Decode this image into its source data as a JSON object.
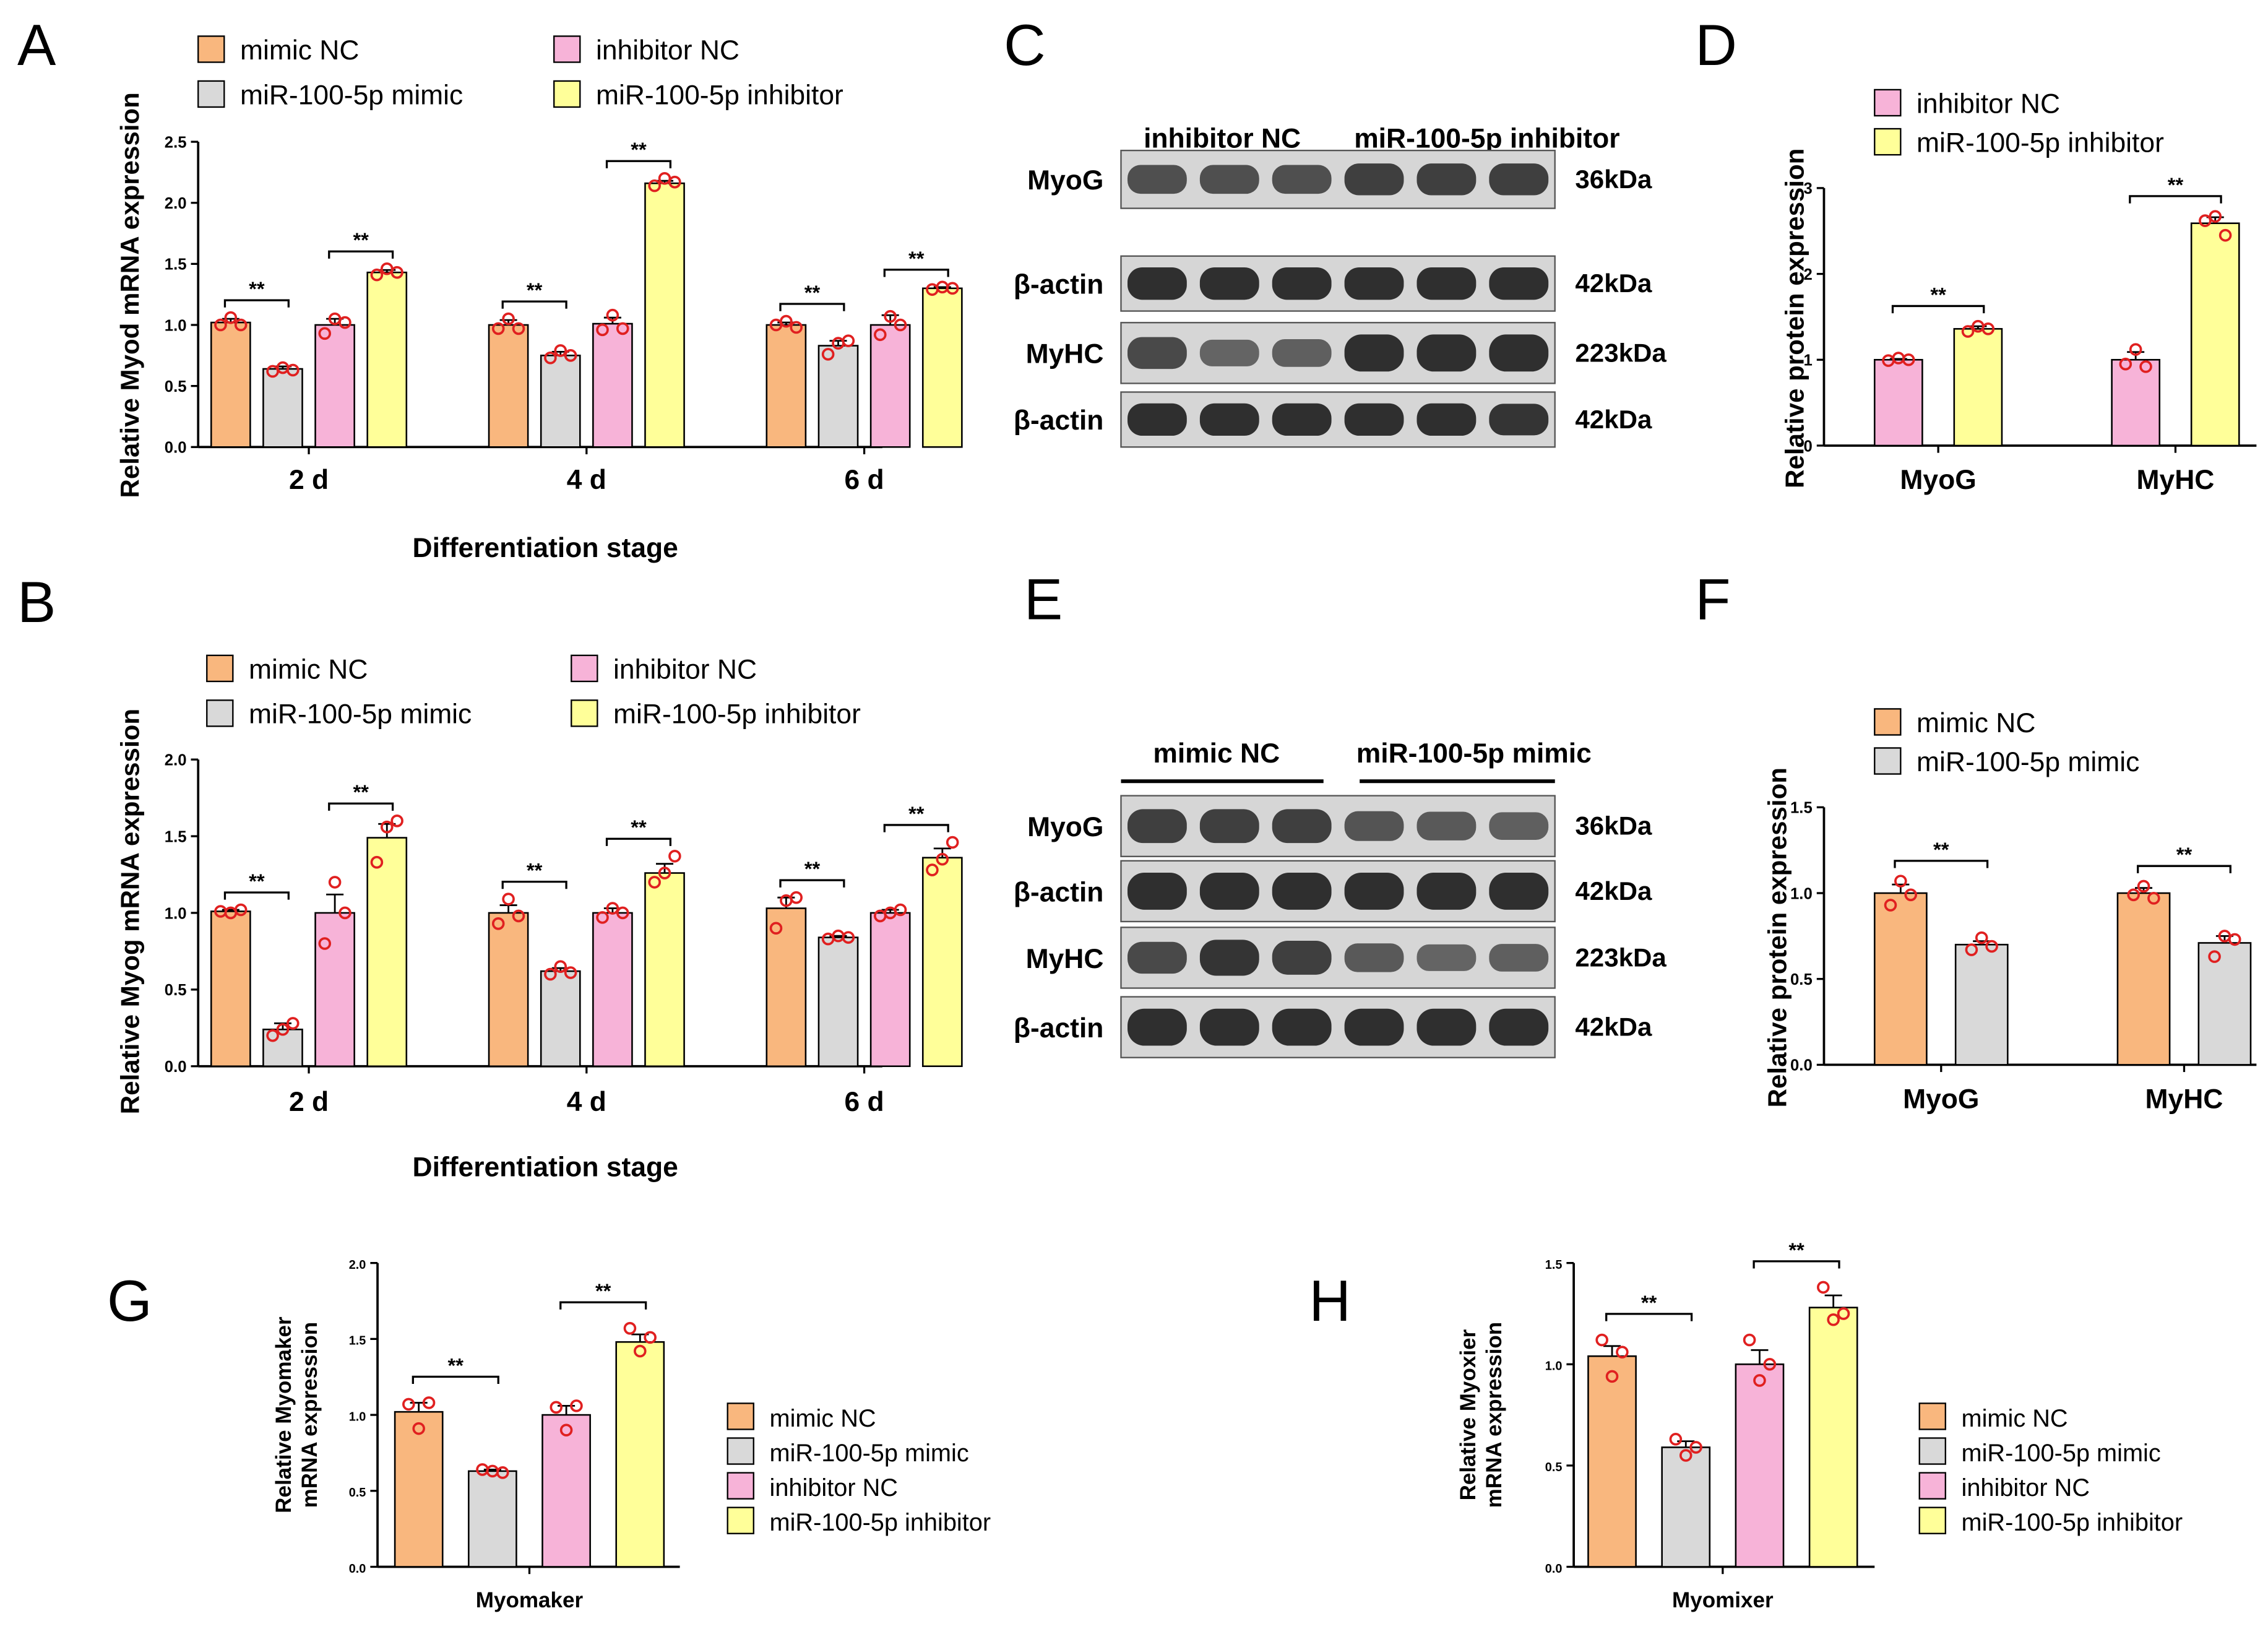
{
  "colors": {
    "mimic_nc": "#f9b77e",
    "mimic": "#d9d9d9",
    "inhibitor_nc": "#f7b3d8",
    "inhibitor": "#ffff99",
    "point": "#e02020",
    "blot_bg": "#d6d6d6",
    "blot_band": "#262626"
  },
  "panel_labels": {
    "A": "A",
    "B": "B",
    "C": "C",
    "D": "D",
    "E": "E",
    "F": "F",
    "G": "G",
    "H": "H"
  },
  "chart_data": [
    {
      "id": "A",
      "type": "bar",
      "ylabel": "Relative Myod mRNA expression",
      "xlabel": "Differentiation stage",
      "ylim": [
        0,
        2.5
      ],
      "yticks": [
        "0.0",
        "0.5",
        "1.0",
        "1.5",
        "2.0",
        "2.5"
      ],
      "categories": [
        "2 d",
        "4 d",
        "6 d"
      ],
      "legend": [
        "mimic NC",
        "miR-100-5p mimic",
        "inhibitor NC",
        "miR-100-5p inhibitor"
      ],
      "series": [
        {
          "name": "mimic NC",
          "values": [
            1.02,
            1.0,
            1.0
          ],
          "err": [
            0.03,
            0.04,
            0.02
          ],
          "points": [
            [
              1.0,
              1.06,
              1.0
            ],
            [
              0.97,
              1.05,
              0.97
            ],
            [
              1.0,
              1.03,
              0.98
            ]
          ]
        },
        {
          "name": "miR-100-5p mimic",
          "values": [
            0.64,
            0.75,
            0.83
          ],
          "err": [
            0.02,
            0.03,
            0.04
          ],
          "points": [
            [
              0.62,
              0.65,
              0.63
            ],
            [
              0.73,
              0.79,
              0.75
            ],
            [
              0.76,
              0.85,
              0.87
            ]
          ]
        },
        {
          "name": "inhibitor NC",
          "values": [
            1.0,
            1.01,
            1.0
          ],
          "err": [
            0.05,
            0.05,
            0.08
          ],
          "points": [
            [
              0.93,
              1.05,
              1.02
            ],
            [
              0.96,
              1.08,
              0.97
            ],
            [
              0.92,
              1.07,
              1.0
            ]
          ]
        },
        {
          "name": "miR-100-5p inhibitor",
          "values": [
            1.43,
            2.16,
            1.3
          ],
          "err": [
            0.02,
            0.02,
            0.01
          ],
          "points": [
            [
              1.41,
              1.46,
              1.43
            ],
            [
              2.14,
              2.2,
              2.17
            ],
            [
              1.29,
              1.31,
              1.3
            ]
          ]
        }
      ],
      "significance": "**"
    },
    {
      "id": "B",
      "type": "bar",
      "ylabel": "Relative Myog mRNA expression",
      "xlabel": "Differentiation stage",
      "ylim": [
        0,
        2.0
      ],
      "yticks": [
        "0.0",
        "0.5",
        "1.0",
        "1.5",
        "2.0"
      ],
      "categories": [
        "2 d",
        "4 d",
        "6 d"
      ],
      "legend": [
        "mimic NC",
        "miR-100-5p mimic",
        "inhibitor NC",
        "miR-100-5p inhibitor"
      ],
      "series": [
        {
          "name": "mimic NC",
          "values": [
            1.01,
            1.0,
            1.03
          ],
          "err": [
            0.01,
            0.05,
            0.07
          ],
          "points": [
            [
              1.01,
              1.0,
              1.02
            ],
            [
              0.93,
              1.09,
              0.98
            ],
            [
              0.9,
              1.08,
              1.1
            ]
          ]
        },
        {
          "name": "miR-100-5p mimic",
          "values": [
            0.24,
            0.62,
            0.84
          ],
          "err": [
            0.04,
            0.02,
            0.01
          ],
          "points": [
            [
              0.2,
              0.24,
              0.28
            ],
            [
              0.6,
              0.65,
              0.61
            ],
            [
              0.83,
              0.85,
              0.84
            ]
          ]
        },
        {
          "name": "inhibitor NC",
          "values": [
            1.0,
            1.0,
            1.0
          ],
          "err": [
            0.12,
            0.03,
            0.02
          ],
          "points": [
            [
              0.8,
              1.2,
              1.0
            ],
            [
              0.97,
              1.03,
              1.0
            ],
            [
              0.98,
              1.0,
              1.02
            ]
          ]
        },
        {
          "name": "miR-100-5p inhibitor",
          "values": [
            1.49,
            1.26,
            1.36
          ],
          "err": [
            0.09,
            0.06,
            0.06
          ],
          "points": [
            [
              1.33,
              1.56,
              1.6
            ],
            [
              1.2,
              1.26,
              1.37
            ],
            [
              1.28,
              1.35,
              1.46
            ]
          ]
        }
      ],
      "significance": "**"
    },
    {
      "id": "D",
      "type": "bar",
      "ylabel": "Relative  protein expression",
      "ylim": [
        0,
        3
      ],
      "yticks": [
        "0",
        "1",
        "2",
        "3"
      ],
      "categories": [
        "MyoG",
        "MyHC"
      ],
      "legend": [
        "inhibitor NC",
        "miR-100-5p inhibitor"
      ],
      "series": [
        {
          "name": "inhibitor NC",
          "values": [
            1.0,
            1.0
          ],
          "err": [
            0.01,
            0.09
          ],
          "points": [
            [
              0.99,
              1.02,
              1.0
            ],
            [
              0.95,
              1.12,
              0.92
            ]
          ]
        },
        {
          "name": "miR-100-5p inhibitor",
          "values": [
            1.36,
            2.59
          ],
          "err": [
            0.03,
            0.07
          ],
          "points": [
            [
              1.33,
              1.39,
              1.36
            ],
            [
              2.62,
              2.67,
              2.45
            ]
          ]
        }
      ],
      "significance": "**"
    },
    {
      "id": "F",
      "type": "bar",
      "ylabel": "Relative  protein expression",
      "ylim": [
        0,
        1.5
      ],
      "yticks": [
        "0.0",
        "0.5",
        "1.0",
        "1.5"
      ],
      "categories": [
        "MyoG",
        "MyHC"
      ],
      "legend": [
        "mimic NC",
        "miR-100-5p mimic"
      ],
      "series": [
        {
          "name": "mimic NC",
          "values": [
            1.0,
            1.0
          ],
          "err": [
            0.05,
            0.03
          ],
          "points": [
            [
              0.93,
              1.07,
              0.99
            ],
            [
              0.99,
              1.04,
              0.97
            ]
          ]
        },
        {
          "name": "miR-100-5p mimic",
          "values": [
            0.7,
            0.71
          ],
          "err": [
            0.02,
            0.04
          ],
          "points": [
            [
              0.67,
              0.74,
              0.69
            ],
            [
              0.63,
              0.75,
              0.73
            ]
          ]
        }
      ],
      "significance": "**"
    },
    {
      "id": "G",
      "type": "bar",
      "ylabel_line1": "Relative Myomaker",
      "ylabel_line2": "mRNA expression",
      "ylim": [
        0,
        2.0
      ],
      "yticks": [
        "0.0",
        "0.5",
        "1.0",
        "1.5",
        "2.0"
      ],
      "categories": [
        "Myomaker"
      ],
      "legend": [
        "mimic NC",
        "miR-100-5p mimic",
        "inhibitor NC",
        "miR-100-5p inhibitor"
      ],
      "series": [
        {
          "name": "mimic NC",
          "values": [
            1.02
          ],
          "err": [
            0.06
          ],
          "points": [
            [
              1.07,
              0.91,
              1.08
            ]
          ]
        },
        {
          "name": "miR-100-5p mimic",
          "values": [
            0.63
          ],
          "err": [
            0.01
          ],
          "points": [
            [
              0.64,
              0.63,
              0.62
            ]
          ]
        },
        {
          "name": "inhibitor NC",
          "values": [
            1.0
          ],
          "err": [
            0.06
          ],
          "points": [
            [
              1.05,
              0.9,
              1.06
            ]
          ]
        },
        {
          "name": "miR-100-5p inhibitor",
          "values": [
            1.48
          ],
          "err": [
            0.05
          ],
          "points": [
            [
              1.57,
              1.42,
              1.51
            ]
          ]
        }
      ],
      "significance": "**"
    },
    {
      "id": "H",
      "type": "bar",
      "ylabel_line1": "Relative Myoxier",
      "ylabel_line2": "mRNA expression",
      "ylim": [
        0,
        1.5
      ],
      "yticks": [
        "0.0",
        "0.5",
        "1.0",
        "1.5"
      ],
      "categories": [
        "Myomixer"
      ],
      "legend": [
        "mimic NC",
        "miR-100-5p mimic",
        "inhibitor NC",
        "miR-100-5p inhibitor"
      ],
      "series": [
        {
          "name": "mimic NC",
          "values": [
            1.04
          ],
          "err": [
            0.05
          ],
          "points": [
            [
              1.12,
              0.94,
              1.06
            ]
          ]
        },
        {
          "name": "miR-100-5p mimic",
          "values": [
            0.59
          ],
          "err": [
            0.03
          ],
          "points": [
            [
              0.63,
              0.55,
              0.59
            ]
          ]
        },
        {
          "name": "inhibitor NC",
          "values": [
            1.0
          ],
          "err": [
            0.07
          ],
          "points": [
            [
              1.12,
              0.92,
              1.0
            ]
          ]
        },
        {
          "name": "miR-100-5p inhibitor",
          "values": [
            1.28
          ],
          "err": [
            0.06
          ],
          "points": [
            [
              1.38,
              1.22,
              1.25
            ]
          ]
        }
      ],
      "significance": "**"
    }
  ],
  "blots": [
    {
      "id": "C",
      "groups": [
        "inhibitor NC",
        "miR-100-5p inhibitor"
      ],
      "rows": [
        {
          "label": "MyoG",
          "kda": "36kDa",
          "intensity": [
            0.7,
            0.7,
            0.7,
            0.85,
            0.85,
            0.85
          ]
        },
        {
          "label": "β-actin",
          "kda": "42kDa",
          "intensity": [
            1,
            1,
            1,
            1,
            1,
            1
          ]
        },
        {
          "label": "MyHC",
          "kda": "223kDa",
          "intensity": [
            0.75,
            0.5,
            0.55,
            1,
            1,
            1
          ]
        },
        {
          "label": "β-actin",
          "kda": "42kDa",
          "intensity": [
            1,
            1,
            1,
            1,
            1,
            0.95
          ]
        }
      ]
    },
    {
      "id": "E",
      "groups": [
        "mimic NC",
        "miR-100-5p mimic"
      ],
      "rows": [
        {
          "label": "MyoG",
          "kda": "36kDa",
          "intensity": [
            0.85,
            0.85,
            0.85,
            0.65,
            0.6,
            0.55
          ]
        },
        {
          "label": "β-actin",
          "kda": "42kDa",
          "intensity": [
            1,
            1,
            1,
            1,
            1,
            1
          ]
        },
        {
          "label": "MyHC",
          "kda": "223kDa",
          "intensity": [
            0.75,
            0.95,
            0.85,
            0.6,
            0.5,
            0.55
          ]
        },
        {
          "label": "β-actin",
          "kda": "42kDa",
          "intensity": [
            1,
            1,
            1,
            1,
            1,
            1
          ]
        }
      ]
    }
  ]
}
